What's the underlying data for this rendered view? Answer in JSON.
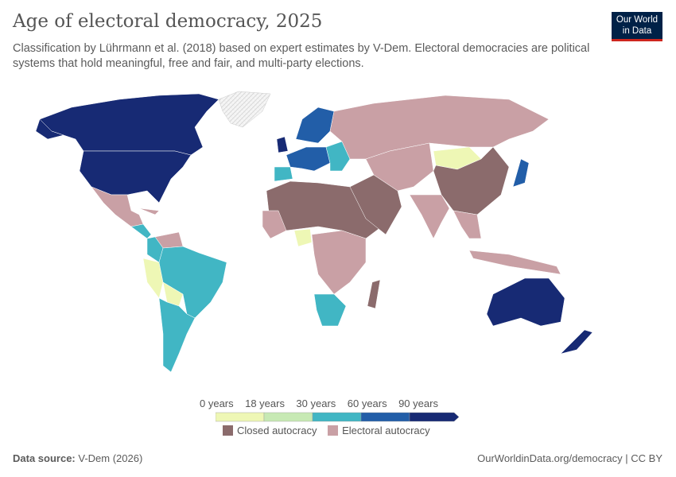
{
  "header": {
    "title": "Age of electoral democracy, 2025",
    "subtitle": "Classification by Lührmann et al. (2018) based on expert estimates by V-Dem. Electoral democracies are political systems that hold meaningful, free and fair, and multi-party elections.",
    "logo": "Our World in Data"
  },
  "legend": {
    "bins": [
      {
        "label": "0 years",
        "color": "#eef7b5"
      },
      {
        "label": "18 years",
        "color": "#c7e9b4"
      },
      {
        "label": "30 years",
        "color": "#41b6c4"
      },
      {
        "label": "60 years",
        "color": "#225ea8"
      },
      {
        "label": "90 years",
        "color": "#172a74"
      }
    ],
    "categories": [
      {
        "label": "Closed autocracy",
        "color": "#8b6b6c"
      },
      {
        "label": "Electoral autocracy",
        "color": "#c9a0a5"
      }
    ]
  },
  "colors": {
    "no_data": "#e8e8e8",
    "border": "#ffffff"
  },
  "footer": {
    "source_label": "Data source:",
    "source": "V-Dem (2026)",
    "url": "OurWorldinData.org/democracy | CC BY"
  }
}
